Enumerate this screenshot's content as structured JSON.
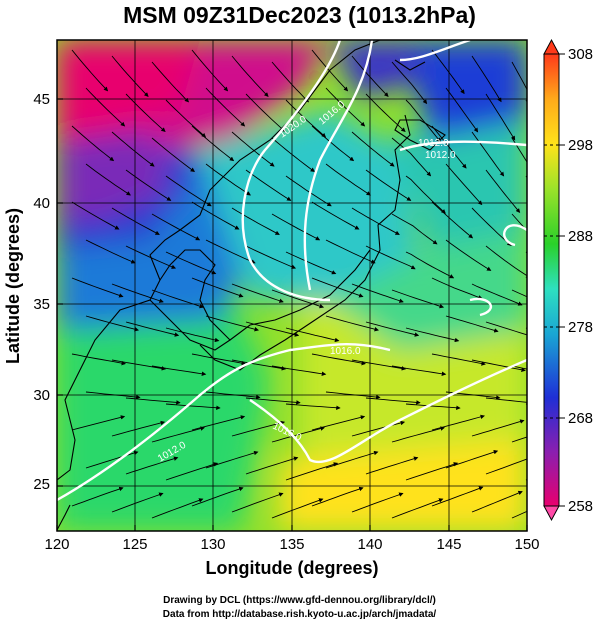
{
  "title": "MSM 09Z31Dec2023 (1013.2hPa)",
  "map": {
    "lon_range": [
      120,
      150
    ],
    "lat_range": [
      23,
      48
    ],
    "lon_ticks": [
      120,
      125,
      130,
      135,
      140,
      145,
      150
    ],
    "lat_ticks": [
      25,
      30,
      35,
      40,
      45
    ],
    "xlabel": "Longitude (degrees)",
    "ylabel": "Latitude  (degrees)",
    "grid": true
  },
  "colorbar": {
    "min": 258,
    "max": 308,
    "labels": [
      308,
      298,
      288,
      278,
      268,
      258
    ],
    "colors": [
      "#e8006e",
      "#8a1fb0",
      "#1f2fd6",
      "#1aa6d4",
      "#2ee0c0",
      "#2ad12a",
      "#9ae22a",
      "#ffe21a",
      "#ffaa1a",
      "#ff3a1a"
    ]
  },
  "contours": {
    "color": "#ffffff",
    "labels": [
      "1020.0",
      "1016.0",
      "1012.0",
      "1012.0",
      "1016.0",
      "1016.0",
      "1012.0"
    ]
  },
  "credits": {
    "line1": "Drawing by DCL (https://www.gfd-dennou.org/library/dcl/)",
    "line2": "Data from http://database.rish.kyoto-u.ac.jp/arch/jmadata/"
  }
}
